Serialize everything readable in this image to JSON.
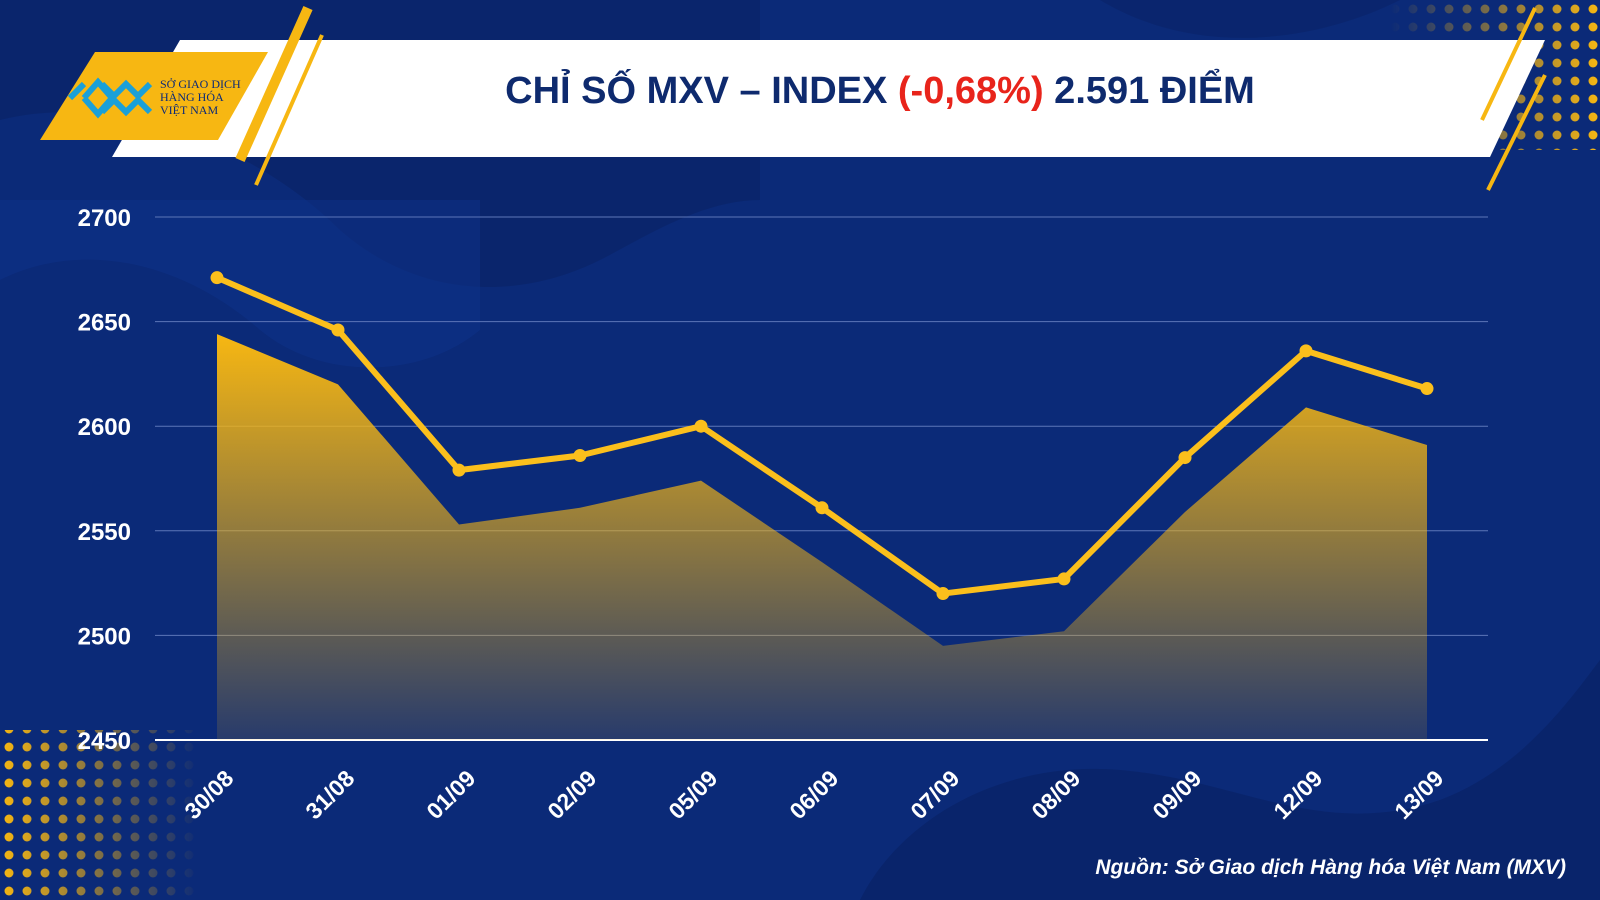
{
  "header": {
    "logo_lines": [
      "SỞ GIAO DỊCH",
      "HÀNG HÓA",
      "VIỆT NAM"
    ],
    "title_prefix": "CHỈ SỐ MXV – INDEX ",
    "title_change": "(-0,68%)",
    "title_suffix": " 2.591 ĐIỂM"
  },
  "source": "Nguồn: Sở Giao dịch Hàng hóa Việt Nam (MXV)",
  "colors": {
    "background": "#0b2a78",
    "line": "#fbbf1c",
    "area_top": "#f7b712",
    "title_change": "#e8241b"
  },
  "chart_data": {
    "type": "line",
    "categories": [
      "30/08",
      "31/08",
      "01/09",
      "02/09",
      "05/09",
      "06/09",
      "07/09",
      "08/09",
      "09/09",
      "12/09",
      "13/09"
    ],
    "series": [
      {
        "values": [
          2671,
          2646,
          2579,
          2586,
          2600,
          2561,
          2520,
          2527,
          2585,
          2636,
          2618
        ]
      }
    ],
    "area_values": [
      2644,
      2620,
      2553,
      2561,
      2574,
      2535,
      2495,
      2502,
      2559,
      2609,
      2591
    ],
    "ylim": [
      2450,
      2700
    ],
    "yticks": [
      2700,
      2650,
      2600,
      2550,
      2500,
      2450
    ],
    "grid": true
  }
}
